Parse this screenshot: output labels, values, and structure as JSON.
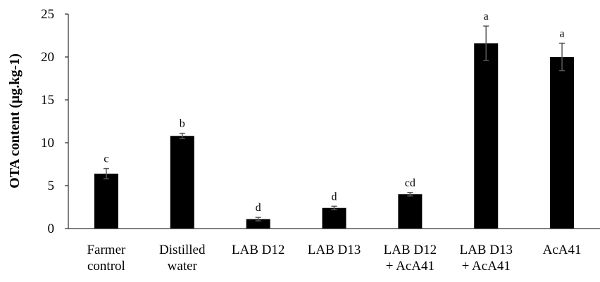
{
  "chart_data": {
    "type": "bar",
    "ylabel": "OTA content (µg.kg-1)",
    "xlabel": "",
    "ylim": [
      0,
      25
    ],
    "yticks": [
      0,
      5,
      10,
      15,
      20,
      25
    ],
    "grid": false,
    "legend": false,
    "bar_color": "#000000",
    "error_bar_color": "#595959",
    "categories": [
      [
        "Farmer",
        "control"
      ],
      [
        "Distilled",
        "water"
      ],
      [
        "LAB D12"
      ],
      [
        "LAB D13"
      ],
      [
        "LAB D12",
        "+ AcA41"
      ],
      [
        "LAB D13",
        "+ AcA41"
      ],
      [
        "AcA41"
      ]
    ],
    "values": [
      6.4,
      10.8,
      1.1,
      2.4,
      4.0,
      21.6,
      20.0
    ],
    "errors": [
      0.6,
      0.3,
      0.2,
      0.2,
      0.2,
      2.0,
      1.6
    ],
    "significance": [
      "c",
      "b",
      "d",
      "d",
      "cd",
      "a",
      "a"
    ]
  }
}
